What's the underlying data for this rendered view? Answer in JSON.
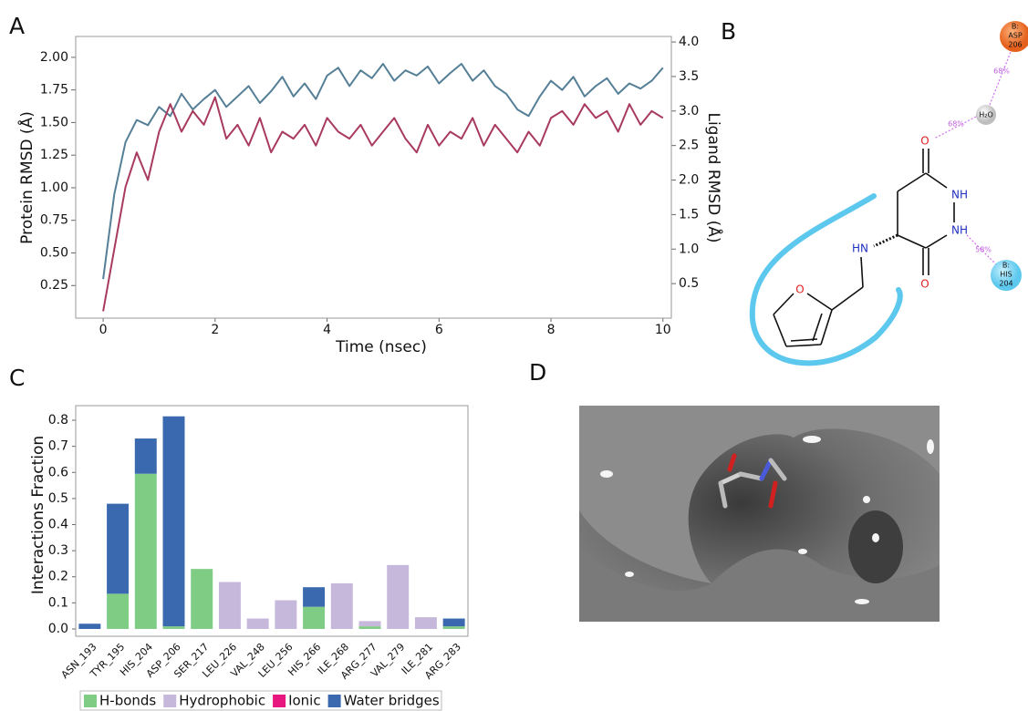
{
  "panel_labels": [
    "A",
    "B",
    "C",
    "D"
  ],
  "chart_data": [
    {
      "type": "line",
      "x_label": "Time (nsec)",
      "y_label": "Protein RMSD (Å)",
      "y2_label": "Ligand RMSD (Å)",
      "x": [
        0,
        0.2,
        0.4,
        0.6,
        0.8,
        1,
        1.2,
        1.4,
        1.6,
        1.8,
        2,
        2.2,
        2.4,
        2.6,
        2.8,
        3,
        3.2,
        3.4,
        3.6,
        3.8,
        4,
        4.2,
        4.4,
        4.6,
        4.8,
        5,
        5.2,
        5.4,
        5.6,
        5.8,
        6,
        6.2,
        6.4,
        6.6,
        6.8,
        7,
        7.2,
        7.4,
        7.6,
        7.8,
        8,
        8.2,
        8.4,
        8.6,
        8.8,
        9,
        9.2,
        9.4,
        9.6,
        9.8,
        10
      ],
      "series": [
        {
          "color": "#557f96",
          "values": [
            0.3,
            0.95,
            1.35,
            1.52,
            1.48,
            1.62,
            1.55,
            1.72,
            1.6,
            1.68,
            1.75,
            1.62,
            1.7,
            1.78,
            1.65,
            1.74,
            1.85,
            1.7,
            1.8,
            1.68,
            1.86,
            1.92,
            1.78,
            1.9,
            1.84,
            1.95,
            1.82,
            1.9,
            1.86,
            1.93,
            1.8,
            1.88,
            1.95,
            1.82,
            1.9,
            1.78,
            1.72,
            1.6,
            1.55,
            1.7,
            1.82,
            1.75,
            1.85,
            1.7,
            1.78,
            1.84,
            1.72,
            1.8,
            1.76,
            1.82,
            1.92
          ]
        },
        {
          "color": "#a83a5e",
          "axis": "y2",
          "values": [
            0.1,
            1.0,
            1.9,
            2.4,
            2.0,
            2.7,
            3.1,
            2.7,
            3.0,
            2.8,
            3.2,
            2.6,
            2.8,
            2.5,
            2.9,
            2.4,
            2.7,
            2.6,
            2.8,
            2.5,
            2.9,
            2.7,
            2.6,
            2.8,
            2.5,
            2.7,
            2.9,
            2.6,
            2.4,
            2.8,
            2.5,
            2.7,
            2.6,
            2.9,
            2.5,
            2.8,
            2.6,
            2.4,
            2.7,
            2.5,
            2.9,
            3.0,
            2.8,
            3.1,
            2.9,
            3.0,
            2.7,
            3.1,
            2.8,
            3.0,
            2.9
          ]
        }
      ],
      "xlim": [
        -0.49,
        10.15
      ],
      "xticks": [
        0,
        2,
        4,
        6,
        8,
        10
      ],
      "ylim": [
        0,
        2.16
      ],
      "yticks": [
        0.25,
        {
          "value": 0.5,
          "label": "0.50"
        },
        0.75,
        {
          "value": 1,
          "label": "1.00"
        },
        1.25,
        {
          "value": 1.5,
          "label": "1.50"
        },
        1.75,
        {
          "value": 2,
          "label": "2.00"
        }
      ],
      "y2lim": [
        0,
        4.08
      ],
      "y2ticks": [
        0.5,
        {
          "value": 1,
          "label": "1.0"
        },
        1.5,
        {
          "value": 2,
          "label": "2.0"
        },
        2.5,
        {
          "value": 3,
          "label": "3.0"
        },
        3.5,
        {
          "value": 4,
          "label": "4.0"
        }
      ]
    },
    {
      "type": "bar",
      "stacked": true,
      "y_label": "Interactions Fraction",
      "categories": [
        "ASN_193",
        "TYR_195",
        "HIS_204",
        "ASP_206",
        "SER_217",
        "LEU_226",
        "VAL_248",
        "LEU_256",
        "HIS_266",
        "ILE_268",
        "ARG_277",
        "VAL_279",
        "ILE_281",
        "ARG_283"
      ],
      "series": [
        {
          "name": "H-bonds",
          "color": "#7fcc85",
          "values": [
            0,
            0.135,
            0.595,
            0.01,
            0.23,
            0,
            0,
            0,
            0.085,
            0,
            0.01,
            0,
            0,
            0.01
          ]
        },
        {
          "name": "Hydrophobic",
          "color": "#c5b8da",
          "values": [
            0,
            0,
            0,
            0,
            0,
            0.18,
            0.04,
            0.11,
            0,
            0.175,
            0.02,
            0.245,
            0.045,
            0
          ]
        },
        {
          "name": "Ionic",
          "color": "#e8177f",
          "values": [
            0,
            0,
            0,
            0,
            0,
            0,
            0,
            0,
            0,
            0,
            0,
            0,
            0,
            0
          ]
        },
        {
          "name": "Water bridges",
          "color": "#3a69b0",
          "values": [
            0.02,
            0.345,
            0.135,
            0.805,
            0,
            0,
            0,
            0,
            0.075,
            0,
            0,
            0,
            0,
            0.03
          ]
        }
      ],
      "ylim": [
        -0.028,
        0.856
      ],
      "yticks": [
        {
          "value": 0,
          "label": "0.0"
        },
        0.1,
        0.2,
        0.3,
        0.4,
        0.5,
        0.6,
        0.7,
        0.8
      ],
      "legend": "bottom"
    }
  ],
  "diagram": {
    "asp": {
      "chain": "B:",
      "residue": "ASP",
      "number": "206"
    },
    "his": {
      "chain": "B:",
      "residue": "HIS",
      "number": "204"
    },
    "water": "H₂O",
    "water_asp_pct": "68%",
    "water_ligand_pct": "68%",
    "his_pct": "58%",
    "atoms": [
      "O",
      "NH",
      "NH",
      "O",
      "HN",
      "O"
    ]
  }
}
